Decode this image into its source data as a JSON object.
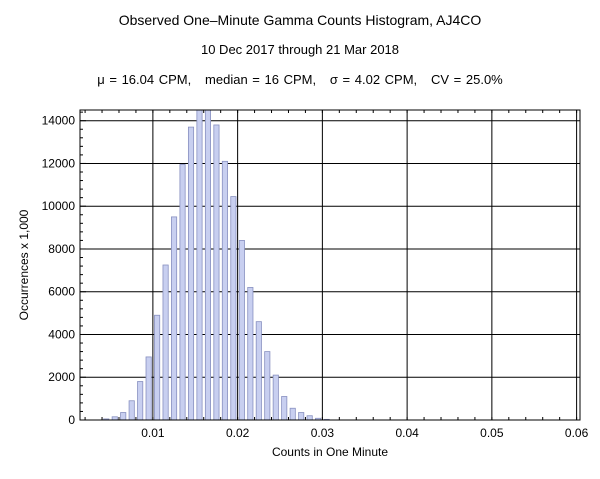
{
  "chart_data": {
    "type": "bar",
    "title": "Observed One–Minute Gamma Counts Histogram, AJ4CO",
    "subtitle": "10 Dec 2017 through 21 Mar 2018",
    "stats_line": "μ = 16.04 CPM,   median = 16 CPM,   σ = 4.02 CPM,   CV = 25.0%",
    "xlabel": "Counts in One Minute",
    "ylabel": "Occurrences x 1,000",
    "xlim": [
      0.0014,
      0.0604
    ],
    "ylim": [
      0,
      14500
    ],
    "xticks": [
      0.01,
      0.02,
      0.03,
      0.04,
      0.05,
      0.06
    ],
    "xtick_labels": [
      "0.01",
      "0.02",
      "0.03",
      "0.04",
      "0.05",
      "0.06"
    ],
    "yticks": [
      0,
      2000,
      4000,
      6000,
      8000,
      10000,
      12000,
      14000
    ],
    "ytick_labels": [
      "0",
      "2000",
      "4000",
      "6000",
      "8000",
      "10000",
      "12000",
      "14000"
    ],
    "grid": true,
    "bar_color": "#c8cff0",
    "bar_edge": "#8890c0",
    "x": [
      0.0045,
      0.0055,
      0.0065,
      0.0075,
      0.0085,
      0.0095,
      0.0105,
      0.0115,
      0.0125,
      0.0135,
      0.0145,
      0.0155,
      0.0165,
      0.0175,
      0.0185,
      0.0195,
      0.0205,
      0.0215,
      0.0225,
      0.0235,
      0.0245,
      0.0255,
      0.0265,
      0.0275,
      0.0285,
      0.0295,
      0.0305
    ],
    "values": [
      50,
      150,
      350,
      900,
      1800,
      2950,
      4900,
      7250,
      9500,
      11950,
      13700,
      15000,
      15000,
      13800,
      12100,
      10450,
      8400,
      6200,
      4600,
      3200,
      2100,
      1100,
      550,
      350,
      200,
      80,
      30
    ]
  }
}
